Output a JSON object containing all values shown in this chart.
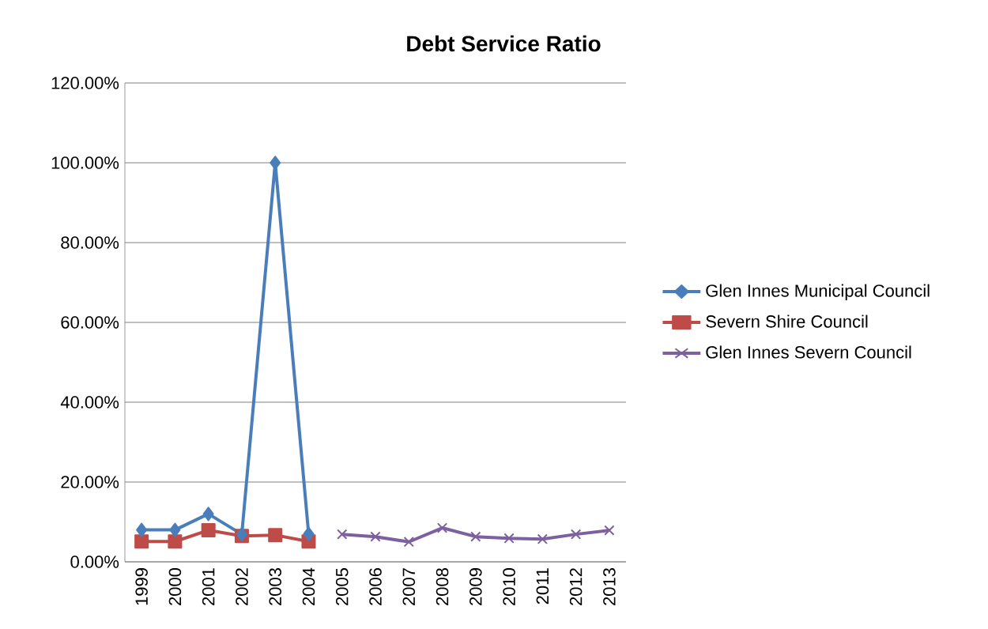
{
  "chart_data": {
    "type": "line",
    "title": "Debt Service Ratio",
    "categories": [
      "1999",
      "2000",
      "2001",
      "2002",
      "2003",
      "2004",
      "2005",
      "2006",
      "2007",
      "2008",
      "2009",
      "2010",
      "2011",
      "2012",
      "2013"
    ],
    "series": [
      {
        "name": "Glen Innes Municipal Council",
        "color": "#4a7ebb",
        "marker": "diamond",
        "values": [
          8,
          8,
          12,
          6.9,
          100,
          7,
          null,
          null,
          null,
          null,
          null,
          null,
          null,
          null,
          null
        ]
      },
      {
        "name": "Severn Shire Council",
        "color": "#be4b48",
        "marker": "square",
        "values": [
          5.1,
          5.1,
          7.9,
          6.5,
          6.7,
          5.1,
          null,
          null,
          null,
          null,
          null,
          null,
          null,
          null,
          null
        ]
      },
      {
        "name": "Glen Innes Severn Council",
        "color": "#7d60a0",
        "marker": "cross",
        "values": [
          null,
          null,
          null,
          null,
          null,
          null,
          6.9,
          6.3,
          5,
          8.5,
          6.3,
          5.9,
          5.7,
          6.9,
          7.9
        ]
      }
    ],
    "ylim": [
      0,
      120
    ],
    "yticks": [
      {
        "value": 0,
        "label": "0.00%"
      },
      {
        "value": 20,
        "label": "20.00%"
      },
      {
        "value": 40,
        "label": "40.00%"
      },
      {
        "value": 60,
        "label": "60.00%"
      },
      {
        "value": 80,
        "label": "80.00%"
      },
      {
        "value": 100,
        "label": "100.00%"
      },
      {
        "value": 120,
        "label": "120.00%"
      }
    ],
    "grid": "y",
    "legend": "right",
    "line_style": "solid"
  }
}
